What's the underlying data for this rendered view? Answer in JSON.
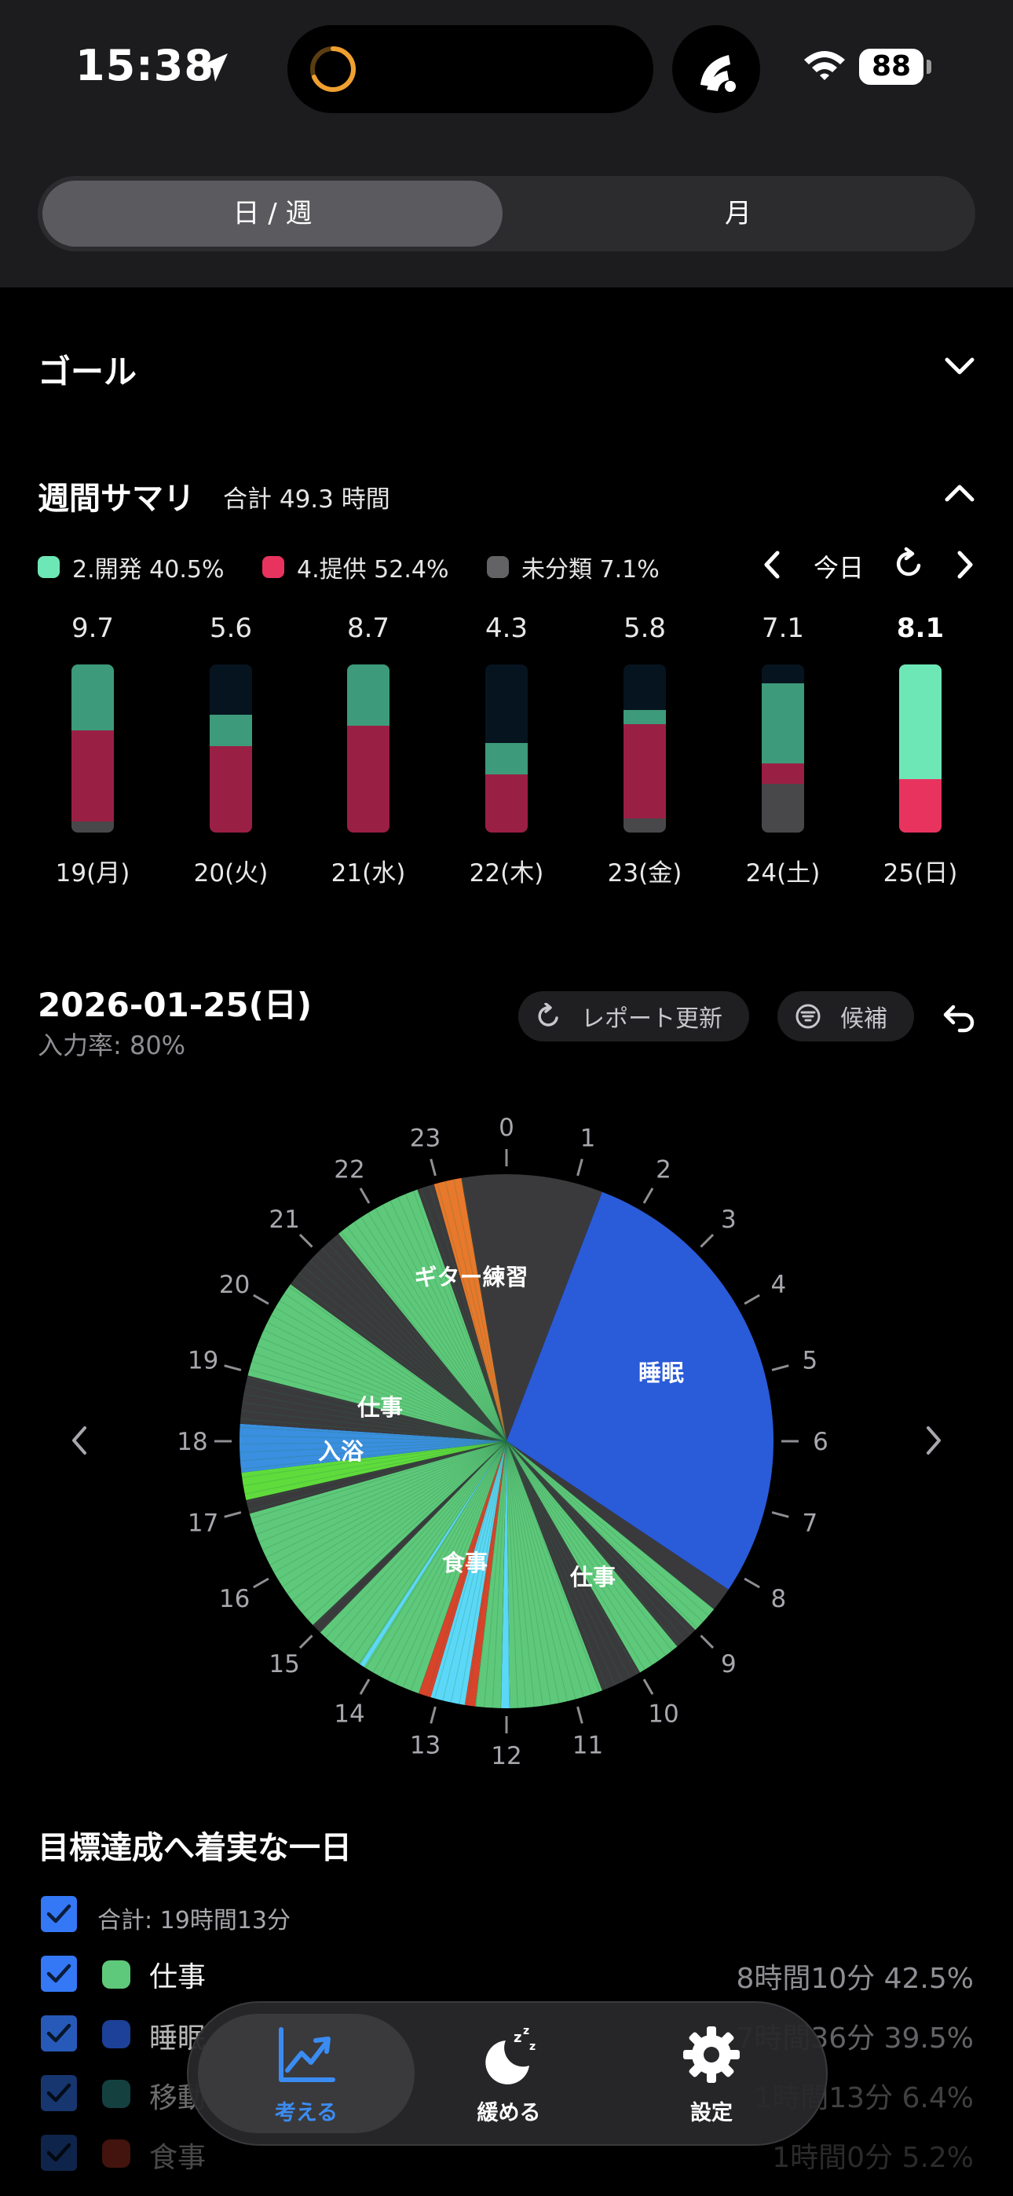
{
  "status_bar": {
    "time": "15:38",
    "battery": "88"
  },
  "segment": {
    "day_week": "日 / 週",
    "month": "月"
  },
  "goal": {
    "title": "ゴール"
  },
  "weekly_summary": {
    "title": "週間サマリ",
    "total": "合計 49.3 時間",
    "legend": [
      {
        "label": "2.開発 40.5%",
        "color": "#6ee7b7"
      },
      {
        "label": "4.提供 52.4%",
        "color": "#e8335f"
      },
      {
        "label": "未分類 7.1%",
        "color": "#636366"
      }
    ],
    "today_label": "今日",
    "days": [
      {
        "label": "19(月)",
        "value": "9.7"
      },
      {
        "label": "20(火)",
        "value": "5.6"
      },
      {
        "label": "21(水)",
        "value": "8.7"
      },
      {
        "label": "22(木)",
        "value": "4.3"
      },
      {
        "label": "23(金)",
        "value": "5.8"
      },
      {
        "label": "24(土)",
        "value": "7.1"
      },
      {
        "label": "25(日)",
        "value": "8.1"
      }
    ]
  },
  "day": {
    "date": "2026-01-25(日)",
    "input_rate": "入力率: 80%",
    "refresh_label": "レポート更新",
    "candidates_label": "候補",
    "clock_labels": {
      "guitar": "ギター練習",
      "sleep": "睡眠",
      "work_left": "仕事",
      "bath": "入浴",
      "meal": "食事",
      "work_right": "仕事"
    },
    "hours": [
      "0",
      "1",
      "2",
      "3",
      "4",
      "5",
      "6",
      "7",
      "8",
      "9",
      "10",
      "11",
      "12",
      "13",
      "14",
      "15",
      "16",
      "17",
      "18",
      "19",
      "20",
      "21",
      "22",
      "23"
    ]
  },
  "summary": {
    "title": "目標達成へ着実な一日",
    "total": "合計: 19時間13分",
    "categories": [
      {
        "name": "仕事",
        "value": "8時間10分 42.5%",
        "color": "#5ec97a"
      },
      {
        "name": "睡眠",
        "value": "7時間36分 39.5%",
        "color": "#2a5bd8"
      },
      {
        "name": "移動",
        "value": "1時間13分 6.4%",
        "color": "#2f8f8f"
      },
      {
        "name": "食事",
        "value": "1時間0分 5.2%",
        "color": "#d9432a"
      }
    ]
  },
  "tabs": [
    {
      "label": "考える",
      "active": true
    },
    {
      "label": "緩める",
      "active": false
    },
    {
      "label": "設定",
      "active": false
    }
  ],
  "colors": {
    "accent": "#3b8cf2",
    "work": "#5ec97a",
    "sleep": "#2a5bd8",
    "guitar": "#e8782b",
    "bath": "#3a8fe0",
    "meal_cyan": "#5bd8f7",
    "red": "#d9432a"
  }
}
